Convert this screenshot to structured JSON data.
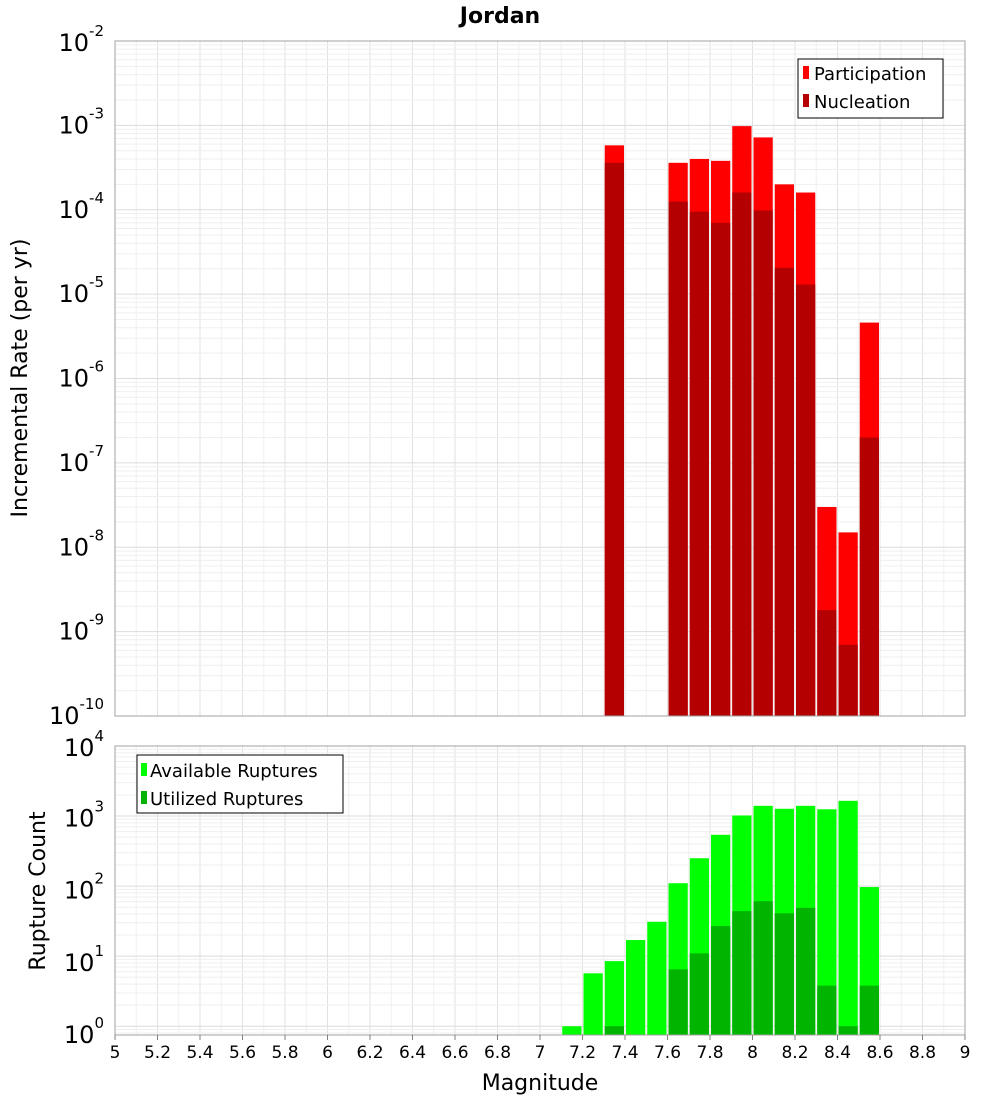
{
  "chart_data": [
    {
      "type": "bar",
      "title": "Jordan",
      "xlabel": "Magnitude",
      "ylabel": "Incremental Rate (per yr)",
      "yscale": "log",
      "xlim": [
        5,
        9
      ],
      "ylim": [
        1e-10,
        0.01
      ],
      "grid": true,
      "legend_position": "top-right",
      "colors": {
        "Participation": "#ff0000",
        "Nucleation": "#b40000"
      },
      "x": [
        7.35,
        7.65,
        7.75,
        7.85,
        7.95,
        8.05,
        8.15,
        8.25,
        8.35,
        8.45,
        8.55
      ],
      "series": [
        {
          "name": "Participation",
          "values": [
            0.00058,
            0.00036,
            0.0004,
            0.00038,
            0.00098,
            0.00072,
            0.0002,
            0.00016,
            3e-08,
            1.5e-08,
            4.6e-06
          ]
        },
        {
          "name": "Nucleation",
          "values": [
            0.00036,
            0.000125,
            9.5e-05,
            7e-05,
            0.00016,
            9.8e-05,
            2.05e-05,
            1.3e-05,
            1.8e-09,
            7e-10,
            2e-07
          ]
        }
      ]
    },
    {
      "type": "bar",
      "xlabel": "Magnitude",
      "ylabel": "Rupture Count",
      "yscale": "log",
      "xlim": [
        5,
        9
      ],
      "ylim": [
        0.75,
        10000
      ],
      "grid": true,
      "legend_position": "top-left",
      "colors": {
        "Available Ruptures": "#00ff00",
        "Utilized Ruptures": "#00b400"
      },
      "x": [
        7.15,
        7.25,
        7.35,
        7.45,
        7.55,
        7.65,
        7.75,
        7.85,
        7.95,
        8.05,
        8.15,
        8.25,
        8.35,
        8.45,
        8.55
      ],
      "series": [
        {
          "name": "Available Ruptures",
          "values": [
            1,
            5.7,
            8.5,
            17,
            31,
            110,
            250,
            540,
            1020,
            1400,
            1270,
            1400,
            1250,
            1650,
            97
          ]
        },
        {
          "name": "Utilized Ruptures",
          "values": [
            0,
            0,
            1,
            0,
            0,
            6.5,
            11,
            27,
            44,
            61,
            41,
            49,
            3.8,
            1,
            3.8
          ]
        }
      ]
    }
  ]
}
